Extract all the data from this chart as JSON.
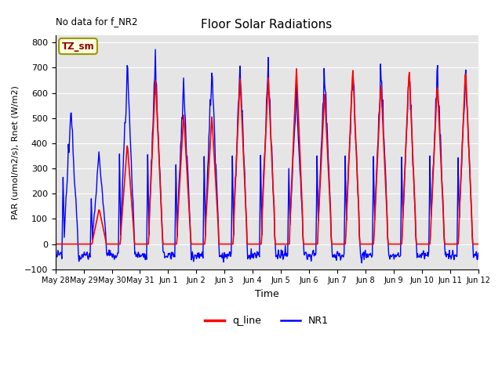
{
  "title": "Floor Solar Radiations",
  "xlabel": "Time",
  "ylabel": "PAR (umol/m2/s), Rnet (W/m2)",
  "ylim": [
    -100,
    830
  ],
  "yticks": [
    -100,
    0,
    100,
    200,
    300,
    400,
    500,
    600,
    700,
    800
  ],
  "annotation_text": "No data for f_NR2",
  "legend_labels": [
    "q_line",
    "NR1"
  ],
  "legend_colors": [
    "red",
    "blue"
  ],
  "tz_label": "TZ_sm",
  "n_days": 15,
  "background_color": "#e5e5e5",
  "q_line_color": "red",
  "nr1_color": "blue",
  "q_line_lw": 1.2,
  "nr1_lw": 1.0,
  "q_peaks": [
    0,
    140,
    400,
    660,
    520,
    510,
    660,
    660,
    700,
    600,
    700,
    640,
    700,
    640,
    700
  ],
  "nr1_extra_peaks": [
    530,
    360,
    715,
    710,
    630,
    695,
    700,
    705,
    600,
    700,
    700,
    695,
    690,
    700,
    685
  ],
  "night_nr1": -50
}
